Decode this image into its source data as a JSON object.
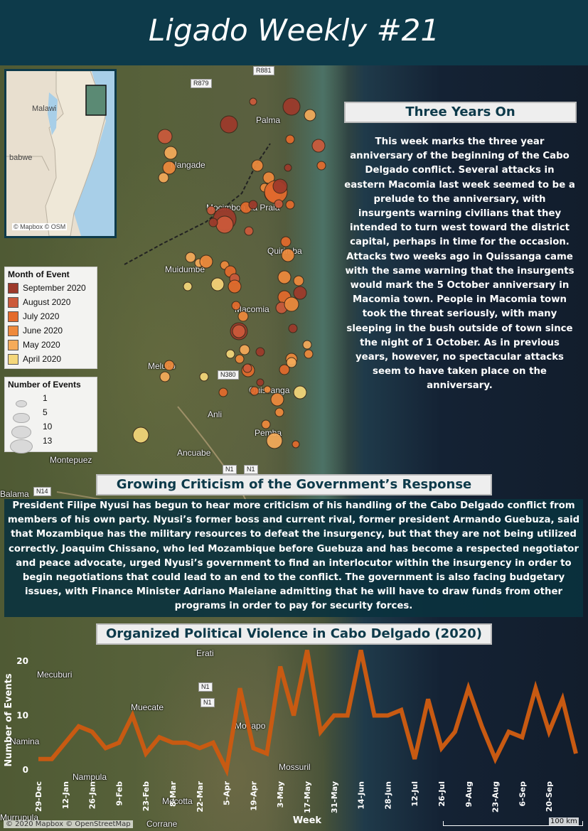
{
  "header": {
    "title": "Ligado Weekly #21"
  },
  "colors": {
    "header_bg": "#0d3a4a",
    "sep2020": "#9e3a2b",
    "aug2020": "#cc5a3b",
    "jul2020": "#e46b2c",
    "jun2020": "#ef8a3c",
    "may2020": "#f6ab5a",
    "apr2020": "#f4d77a",
    "chart_line": "#c85a12"
  },
  "map": {
    "places": [
      "Palma",
      "Nangade",
      "Mocimboa da Praia",
      "Muidumbe",
      "Macomia",
      "Meluco",
      "Quissanga",
      "Ancuabe",
      "Pemba",
      "Anli",
      "Montepuez",
      "Balama",
      "Erati",
      "Mecuburi",
      "Muecate",
      "Monapo",
      "Namina",
      "Nampula",
      "Mecotta",
      "Mossuril",
      "Murrupula",
      "Corrane",
      "Quirimba"
    ],
    "roads": [
      "R881",
      "R879",
      "N380",
      "N1",
      "N1",
      "N14",
      "N1",
      "N1"
    ],
    "scale_label": "100 km",
    "copyright": "© 2020 Mapbox © OpenStreetMap",
    "inset": {
      "labels": [
        "Malawi",
        "babwe"
      ],
      "copyright": "© Mapbox © OSM"
    },
    "events": [
      {
        "lon_idx": 1,
        "month": "sep",
        "size": 6
      },
      {
        "month": "sep",
        "size": 9
      },
      {
        "month": "may",
        "size": 4
      },
      {
        "month": "jun",
        "size": 5
      },
      {
        "month": "jul",
        "size": 5
      },
      {
        "month": "jun",
        "size": 4
      },
      {
        "month": "sep",
        "size": 13
      },
      {
        "month": "jun",
        "size": 13
      },
      {
        "month": "jul",
        "size": 11
      },
      {
        "month": "aug",
        "size": 5
      },
      {
        "month": "apr",
        "size": 4
      },
      {
        "month": "may",
        "size": 5
      },
      {
        "month": "jun",
        "size": 6
      },
      {
        "month": "sep",
        "size": 5
      },
      {
        "month": "jul",
        "size": 8
      },
      {
        "month": "may",
        "size": 7
      },
      {
        "month": "apr",
        "size": 6
      },
      {
        "month": "jun",
        "size": 4
      },
      {
        "month": "aug",
        "size": 4
      },
      {
        "month": "jul",
        "size": 4
      }
    ]
  },
  "legend_month": {
    "title": "Month of Event",
    "items": [
      {
        "label": "September 2020",
        "color": "#9e3a2b"
      },
      {
        "label": "August 2020",
        "color": "#cc5a3b"
      },
      {
        "label": "July 2020",
        "color": "#e46b2c"
      },
      {
        "label": "June 2020",
        "color": "#ef8a3c"
      },
      {
        "label": "May 2020",
        "color": "#f6ab5a"
      },
      {
        "label": "April 2020",
        "color": "#f4d77a"
      }
    ]
  },
  "legend_size": {
    "title": "Number of Events",
    "items": [
      {
        "label": "1",
        "value": 1
      },
      {
        "label": "5",
        "value": 5
      },
      {
        "label": "10",
        "value": 10
      },
      {
        "label": "13",
        "value": 13
      }
    ]
  },
  "three_years": {
    "heading": "Three Years On",
    "body": "This week marks the three year anniversary of the beginning of the Cabo Delgado conflict. Several attacks in eastern Macomia last week seemed to be a prelude to the anniversary, with insurgents warning civilians that they intended to turn west toward the district capital, perhaps in time for the occasion. Attacks two weeks ago in Quissanga came with the same warning that the insurgents would mark the 5 October anniversary in Macomia town. People in Macomia town took the threat seriously, with many sleeping in the bush outside of town since the night of 1 October. As in previous years, however, no spectacular attacks seem to have taken place on the anniversary."
  },
  "criticism": {
    "heading": "Growing Criticism of the Government’s Response",
    "body": "President Filipe Nyusi has begun to hear more criticism of his handling of the Cabo Delgado conflict from members of his own party. Nyusi’s former boss and current rival, former president Armando Guebuza, said that Mozambique has the military resources to defeat the insurgency, but that they are not being utilized correctly. Joaquim Chissano, who led Mozambique before Guebuza and has become a respected negotiator and peace advocate, urged Nyusi’s government to find an interlocutor within the insurgency in order to begin negotiations that could lead to an end to the conflict. The government is also facing budgetary issues, with Finance Minister Adriano Maleiane admitting that he will have to draw funds from other programs in order to pay for security forces."
  },
  "chart_data": {
    "type": "line",
    "title": "Organized Political Violence in Cabo Delgado (2020)",
    "xlabel": "Week",
    "ylabel": "Number of Events",
    "ylim": [
      0,
      23
    ],
    "yticks": [
      0,
      10,
      20
    ],
    "xticks": [
      "29-Dec",
      "12-Jan",
      "26-Jan",
      "9-Feb",
      "23-Feb",
      "8-Mar",
      "22-Mar",
      "5-Apr",
      "19-Apr",
      "3-May",
      "17-May",
      "31-May",
      "14-Jun",
      "28-Jun",
      "12-Jul",
      "26-Jul",
      "9-Aug",
      "23-Aug",
      "6-Sep",
      "20-Sep"
    ],
    "grid": false,
    "series": [
      {
        "values": [
          2,
          2,
          5,
          8,
          7,
          4,
          5,
          10,
          3,
          6,
          5,
          5,
          4,
          5,
          0,
          15,
          4,
          3,
          19,
          10,
          22,
          7,
          10,
          10,
          22,
          10,
          10,
          11,
          2,
          13,
          4,
          7,
          15,
          8,
          2,
          7,
          6,
          15,
          7,
          13,
          3
        ]
      }
    ]
  }
}
